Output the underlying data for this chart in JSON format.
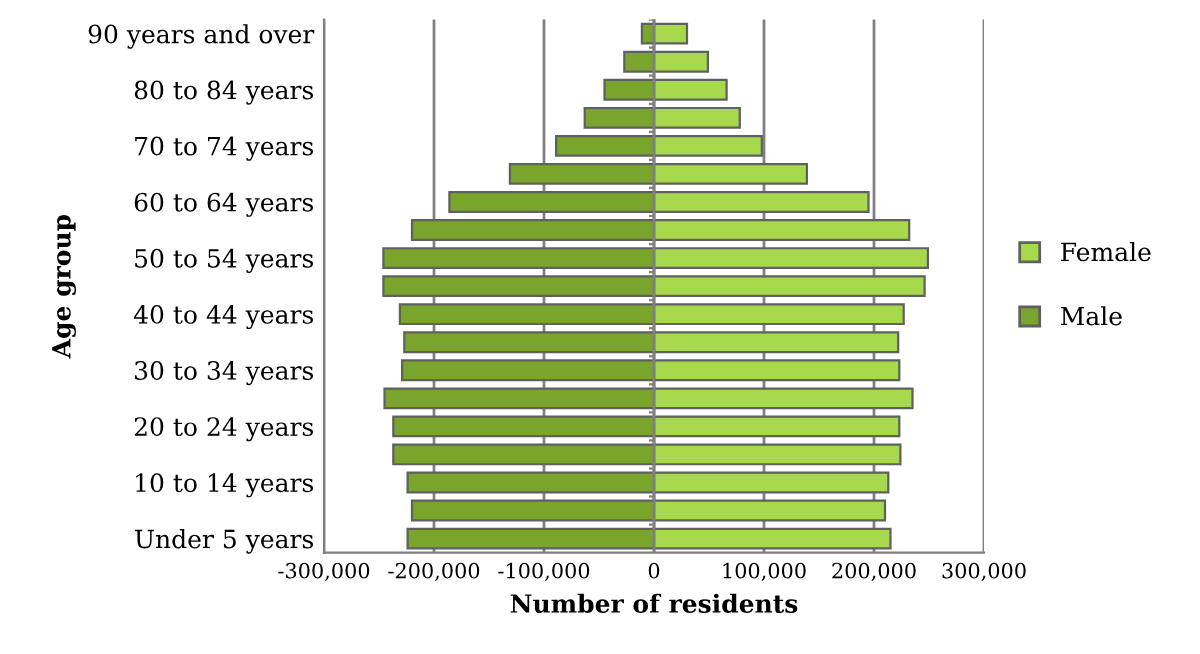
{
  "chart_data": {
    "type": "bar",
    "orientation": "horizontal",
    "xlabel": "Number of residents",
    "ylabel": "Age group",
    "categories": [
      "90 years and over",
      null,
      "80 to 84 years",
      null,
      "70 to 74 years",
      null,
      "60 to 64 years",
      null,
      "50 to 54 years",
      null,
      "40 to 44 years",
      null,
      "30 to 34 years",
      null,
      "20 to 24 years",
      null,
      "10 to 14 years",
      null,
      "Under 5 years"
    ],
    "series": [
      {
        "name": "Female",
        "color": "#a6d94c",
        "values": [
          30000,
          49000,
          66000,
          78000,
          98000,
          139000,
          195000,
          232000,
          249000,
          246000,
          227000,
          222000,
          223000,
          235000,
          223000,
          224000,
          213000,
          210000,
          215000
        ]
      },
      {
        "name": "Male",
        "color": "#79a52c",
        "values": [
          -11000,
          -27000,
          -45000,
          -63000,
          -89000,
          -131000,
          -186000,
          -220000,
          -246000,
          -246000,
          -231000,
          -227000,
          -229000,
          -245000,
          -237000,
          -237000,
          -224000,
          -220000,
          -224000
        ]
      }
    ],
    "xlim": [
      -300000,
      300000
    ],
    "xticks": [
      {
        "value": -300000,
        "label": "-300,000"
      },
      {
        "value": -200000,
        "label": "-200,000"
      },
      {
        "value": -100000,
        "label": "-100,000"
      },
      0,
      {
        "value": 100000,
        "label": "100,000"
      },
      {
        "value": 200000,
        "label": "200,000"
      },
      {
        "value": 300000,
        "label": "300,000"
      }
    ],
    "grid": "x",
    "legend": "right",
    "stacked": true
  }
}
